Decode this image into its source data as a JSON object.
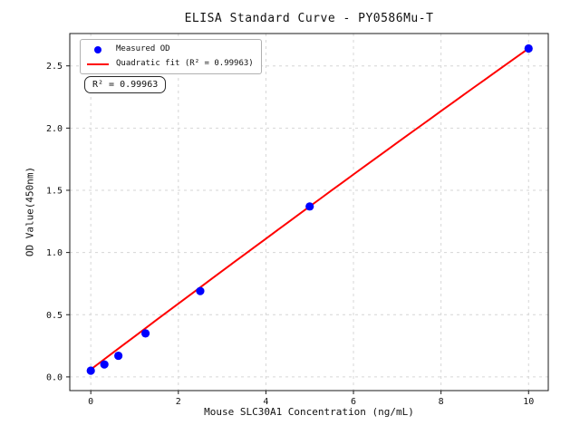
{
  "figure": {
    "background": "#ffffff"
  },
  "chart_data": {
    "type": "scatter",
    "title": "ELISA Standard Curve - PY0586Mu-T",
    "xlabel": "Mouse SLC30A1 Concentration (ng/mL)",
    "ylabel": "OD Value(450nm)",
    "xlim": [
      -0.48,
      10.45
    ],
    "ylim": [
      -0.11,
      2.76
    ],
    "x_tick_labels": [
      "0",
      "2",
      "4",
      "6",
      "8",
      "10"
    ],
    "x_tick_values": [
      0,
      2,
      4,
      6,
      8,
      10
    ],
    "y_tick_labels": [
      "0.0",
      "0.5",
      "1.0",
      "1.5",
      "2.0",
      "2.5"
    ],
    "y_tick_values": [
      0,
      0.5,
      1.0,
      1.5,
      2.0,
      2.5
    ],
    "grid": true,
    "grid_style": "dashed",
    "colors": {
      "points": "#0000ff",
      "fit_line": "#ff0000",
      "grid": "#d6d6d6",
      "axis": "#1a1a1a",
      "text": "#111111"
    },
    "series": [
      {
        "name": "Measured OD",
        "type": "scatter",
        "x": [
          0,
          0.31,
          0.63,
          1.25,
          2.5,
          5,
          10
        ],
        "y": [
          0.05,
          0.1,
          0.17,
          0.35,
          0.69,
          1.37,
          2.64
        ]
      },
      {
        "name": "Quadratic fit",
        "type": "line",
        "equation": {
          "a": -0.0008,
          "b": 0.266,
          "c": 0.06
        },
        "x_range": [
          0,
          10
        ]
      }
    ],
    "legend": {
      "position": "upper left",
      "entries": [
        {
          "label": "Measured OD",
          "marker": "dot"
        },
        {
          "label": "Quadratic fit (R² = 0.99963)",
          "marker": "line"
        }
      ]
    },
    "annotation": {
      "text": "R² = 0.99963"
    },
    "r_squared": 0.99963
  }
}
